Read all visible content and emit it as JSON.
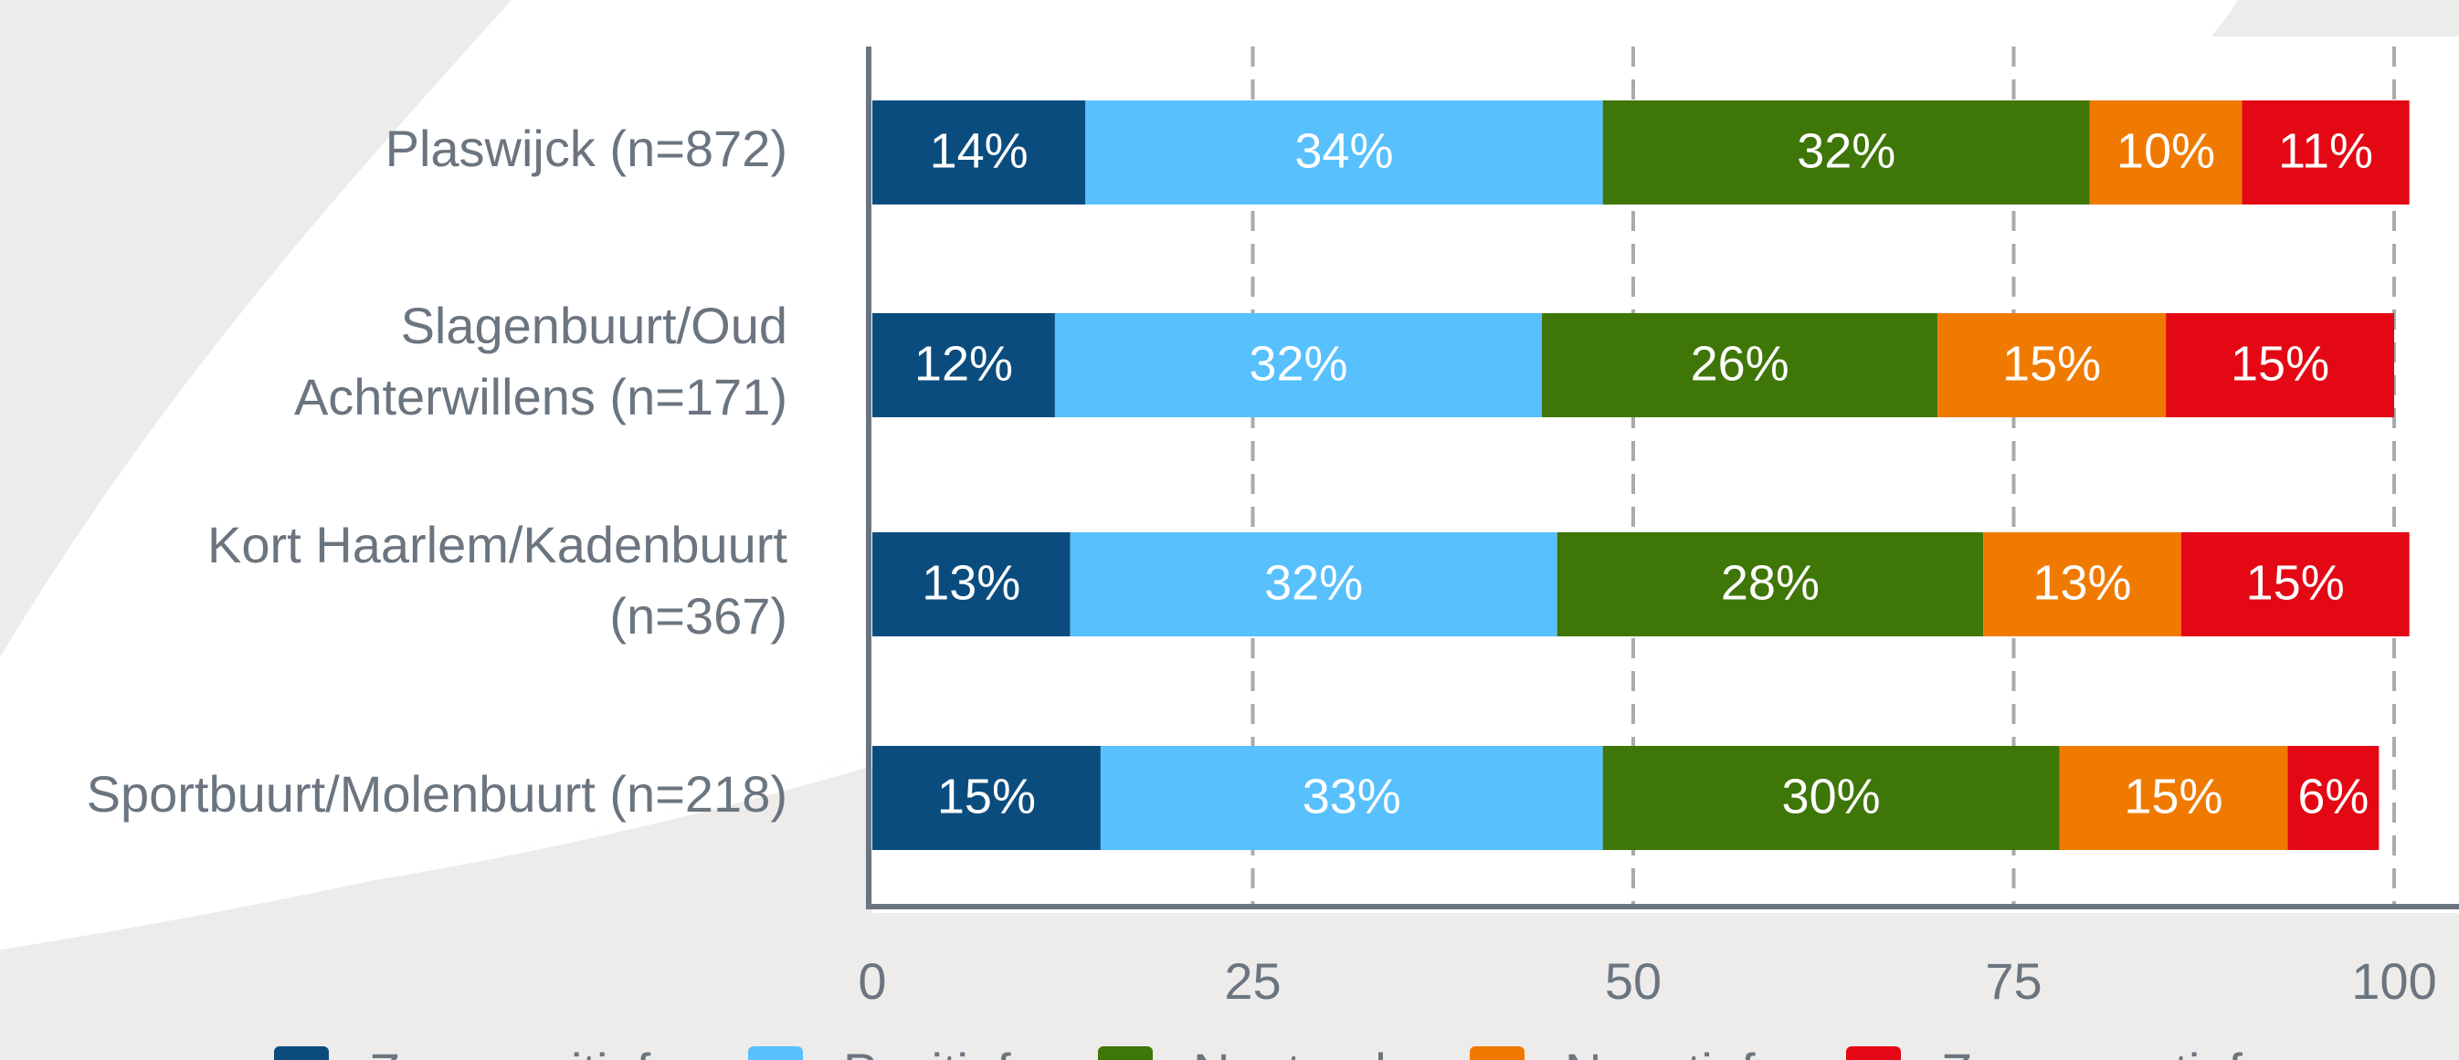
{
  "chart_data": {
    "type": "stacked-barh",
    "categories": [
      [
        "Plaswijck (n=872)"
      ],
      [
        "Slagenbuurt/Oud",
        "Achterwillens (n=171)"
      ],
      [
        "Kort Haarlem/Kadenbuurt",
        "(n=367)"
      ],
      [
        "Sportbuurt/Molenbuurt (n=218)"
      ]
    ],
    "series": [
      {
        "name": "Zeer positief",
        "color": "#0b4c7e",
        "values": [
          14,
          12,
          13,
          15
        ],
        "value_labels": [
          "14%",
          "12%",
          "13%",
          "15%"
        ]
      },
      {
        "name": "Positief",
        "color": "#57c0fd",
        "values": [
          34,
          32,
          32,
          33
        ],
        "value_labels": [
          "34%",
          "32%",
          "32%",
          "33%"
        ]
      },
      {
        "name": "Neutraal",
        "color": "#3f7608",
        "values": [
          32,
          26,
          28,
          30
        ],
        "value_labels": [
          "32%",
          "26%",
          "28%",
          "30%"
        ]
      },
      {
        "name": "Negatief",
        "color": "#f07a00",
        "values": [
          10,
          15,
          13,
          15
        ],
        "value_labels": [
          "10%",
          "15%",
          "13%",
          "15%"
        ]
      },
      {
        "name": "Zeer negatief",
        "color": "#e30814",
        "values": [
          11,
          15,
          15,
          6
        ],
        "value_labels": [
          "11%",
          "15%",
          "15%",
          "6%"
        ]
      }
    ],
    "xlim": [
      0,
      100
    ],
    "xticks": [
      0,
      25,
      50,
      75,
      100
    ],
    "grid": true,
    "legend": "bottom"
  }
}
